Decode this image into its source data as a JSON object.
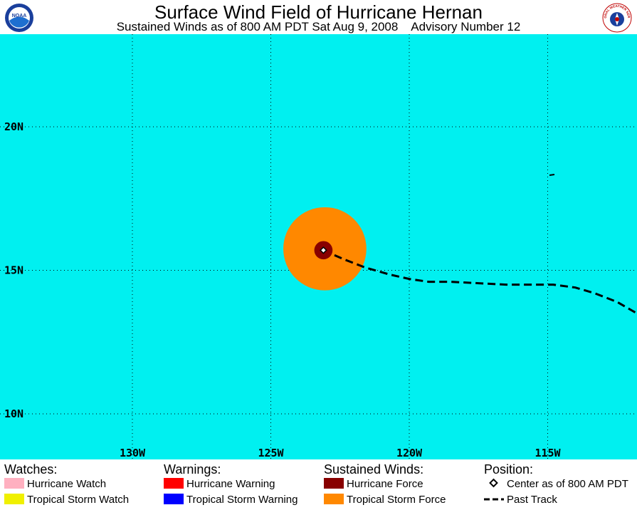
{
  "header": {
    "title": "Surface Wind Field of Hurricane Hernan",
    "subtitle": "Sustained Winds as of 800 AM PDT Sat Aug 9, 2008    Advisory Number 12",
    "left_logo_text": "NOAA",
    "right_logo_text": "NATIONAL WEATHER SERVICE"
  },
  "map": {
    "background_color": "#00f0f0",
    "lat_labels": [
      {
        "lat": 20,
        "label": "20N"
      },
      {
        "lat": 15,
        "label": "15N"
      },
      {
        "lat": 10,
        "label": "10N"
      }
    ],
    "lon_labels": [
      {
        "lon": -130,
        "label": "130W"
      },
      {
        "lon": -125,
        "label": "125W"
      },
      {
        "lon": -120,
        "label": "120W"
      },
      {
        "lon": -115,
        "label": "115W"
      }
    ],
    "center": {
      "lat": 15.7,
      "lon": -123.1
    },
    "tropical_storm_force_radius_deg": 1.5,
    "hurricane_force_radius_deg": 0.33,
    "past_track": [
      {
        "lat": 15.7,
        "lon": -123.1
      },
      {
        "lat": 15.4,
        "lon": -122.4
      },
      {
        "lat": 15.1,
        "lon": -121.6
      },
      {
        "lat": 14.85,
        "lon": -120.7
      },
      {
        "lat": 14.7,
        "lon": -120.0
      },
      {
        "lat": 14.6,
        "lon": -119.3
      },
      {
        "lat": 14.6,
        "lon": -118.5
      },
      {
        "lat": 14.55,
        "lon": -117.5
      },
      {
        "lat": 14.5,
        "lon": -116.5
      },
      {
        "lat": 14.5,
        "lon": -115.5
      },
      {
        "lat": 14.5,
        "lon": -114.8
      },
      {
        "lat": 14.4,
        "lon": -114.0
      },
      {
        "lat": 14.2,
        "lon": -113.3
      },
      {
        "lat": 13.9,
        "lon": -112.5
      },
      {
        "lat": 13.4,
        "lon": -111.6
      }
    ]
  },
  "legend": {
    "watches": {
      "heading": "Watches:",
      "items": [
        {
          "label": "Hurricane Watch",
          "color": "#ffb0c0"
        },
        {
          "label": "Tropical Storm Watch",
          "color": "#f0f000"
        }
      ]
    },
    "warnings": {
      "heading": "Warnings:",
      "items": [
        {
          "label": "Hurricane Warning",
          "color": "#ff0000"
        },
        {
          "label": "Tropical Storm Warning",
          "color": "#0000ff"
        }
      ]
    },
    "winds": {
      "heading": "Sustained Winds:",
      "items": [
        {
          "label": "Hurricane Force",
          "color": "#880000"
        },
        {
          "label": "Tropical Storm Force",
          "color": "#ff8800"
        }
      ]
    },
    "position": {
      "heading": "Position:",
      "center_label": "Center as of 800 AM PDT",
      "track_label": "Past Track"
    }
  }
}
